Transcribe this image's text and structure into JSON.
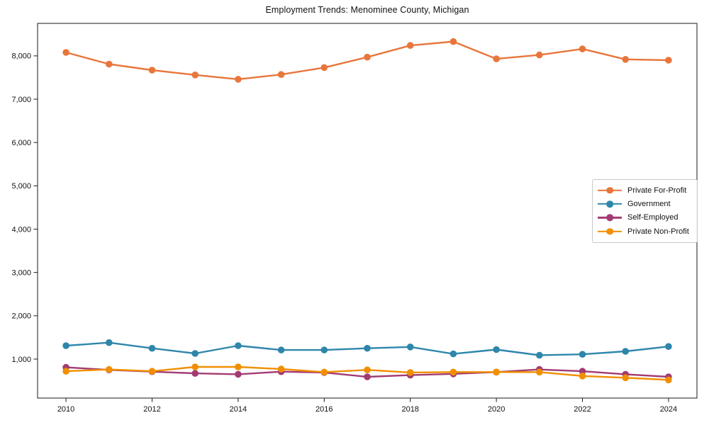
{
  "chart_data": {
    "type": "line",
    "title": "Employment Trends: Menominee County, Michigan",
    "xlabel": "",
    "ylabel": "",
    "grid": false,
    "legend_position": "right-center",
    "xlim": [
      2009.34,
      2024.66
    ],
    "ylim": [
      100,
      8750
    ],
    "x": [
      2010,
      2011,
      2012,
      2013,
      2014,
      2015,
      2016,
      2017,
      2018,
      2019,
      2020,
      2021,
      2022,
      2023,
      2024
    ],
    "x_tick_values": [
      2010,
      2012,
      2014,
      2016,
      2018,
      2020,
      2022,
      2024
    ],
    "x_tick_labels": [
      "2010",
      "2012",
      "2014",
      "2016",
      "2018",
      "2020",
      "2022",
      "2024"
    ],
    "y_tick_values": [
      1000,
      2000,
      3000,
      4000,
      5000,
      6000,
      7000,
      8000
    ],
    "y_tick_labels": [
      "1,000",
      "2,000",
      "3,000",
      "4,000",
      "5,000",
      "6,000",
      "7,000",
      "8,000"
    ],
    "series": [
      {
        "name": "Private For-Profit",
        "color": "#E8763C",
        "values": [
          8080,
          7810,
          7670,
          7560,
          7460,
          7570,
          7730,
          7970,
          8240,
          8330,
          7930,
          8020,
          8160,
          7920,
          7900
        ]
      },
      {
        "name": "Government",
        "color": "#2E86AB",
        "values": [
          1310,
          1380,
          1250,
          1130,
          1310,
          1210,
          1210,
          1250,
          1280,
          1120,
          1220,
          1090,
          1110,
          1180,
          1290
        ]
      },
      {
        "name": "Self-Employed",
        "color": "#A23B72",
        "values": [
          810,
          750,
          710,
          670,
          650,
          710,
          690,
          590,
          630,
          660,
          700,
          760,
          720,
          650,
          590
        ]
      },
      {
        "name": "Private Non-Profit",
        "color": "#F18F01",
        "values": [
          720,
          760,
          720,
          820,
          820,
          770,
          700,
          750,
          690,
          700,
          700,
          700,
          610,
          570,
          520
        ]
      }
    ]
  }
}
